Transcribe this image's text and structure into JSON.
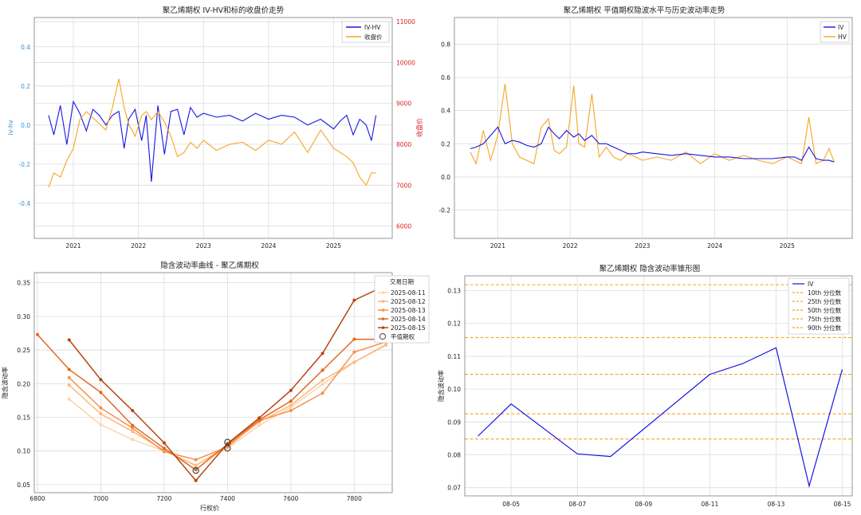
{
  "colors": {
    "iv": "#1515e6",
    "hv": "#f5a623",
    "axis_left": "#3a8fd0",
    "axis_right": "#e02020",
    "pct": "#f5a623"
  },
  "chart_data": [
    {
      "id": "p1",
      "type": "line",
      "title": "聚乙烯期权 IV-HV和标的收盘价走势",
      "ylabel": "iv-hv",
      "y2label": "收盘价",
      "x_ticks": [
        "2021",
        "2022",
        "2023",
        "2024",
        "2025"
      ],
      "ylim": [
        -0.58,
        0.55
      ],
      "y_ticks": [
        -0.4,
        -0.2,
        0.0,
        0.2,
        0.4
      ],
      "y2lim": [
        5700,
        11100
      ],
      "y2_ticks": [
        6000,
        7000,
        8000,
        9000,
        10000,
        11000
      ],
      "xlim": [
        2020.4,
        2025.9
      ],
      "series": [
        {
          "name": "IV-HV",
          "axis": "left",
          "color": "#1515e6",
          "x": [
            2020.62,
            2020.7,
            2020.8,
            2020.9,
            2021.0,
            2021.1,
            2021.2,
            2021.3,
            2021.4,
            2021.5,
            2021.6,
            2021.7,
            2021.78,
            2021.85,
            2021.95,
            2022.05,
            2022.12,
            2022.2,
            2022.3,
            2022.4,
            2022.5,
            2022.6,
            2022.7,
            2022.8,
            2022.9,
            2023.0,
            2023.2,
            2023.4,
            2023.6,
            2023.8,
            2024.0,
            2024.2,
            2024.4,
            2024.6,
            2024.8,
            2025.0,
            2025.1,
            2025.2,
            2025.3,
            2025.4,
            2025.5,
            2025.58,
            2025.65
          ],
          "values": [
            0.05,
            -0.05,
            0.1,
            -0.1,
            0.12,
            0.06,
            -0.03,
            0.08,
            0.05,
            0.0,
            0.05,
            0.07,
            -0.12,
            0.03,
            0.08,
            -0.08,
            0.05,
            -0.29,
            0.1,
            -0.15,
            0.07,
            0.08,
            -0.05,
            0.09,
            0.04,
            0.06,
            0.04,
            0.05,
            0.02,
            0.06,
            0.03,
            0.05,
            0.04,
            0.0,
            0.03,
            -0.02,
            0.02,
            0.05,
            -0.05,
            0.03,
            0.0,
            -0.08,
            0.05
          ]
        },
        {
          "name": "收盘价",
          "axis": "right",
          "color": "#f5a623",
          "x": [
            2020.62,
            2020.7,
            2020.8,
            2020.9,
            2021.0,
            2021.1,
            2021.2,
            2021.3,
            2021.4,
            2021.5,
            2021.6,
            2021.7,
            2021.78,
            2021.85,
            2021.95,
            2022.05,
            2022.12,
            2022.2,
            2022.3,
            2022.4,
            2022.5,
            2022.6,
            2022.7,
            2022.8,
            2022.9,
            2023.0,
            2023.2,
            2023.4,
            2023.6,
            2023.8,
            2024.0,
            2024.2,
            2024.4,
            2024.6,
            2024.8,
            2025.0,
            2025.1,
            2025.2,
            2025.3,
            2025.4,
            2025.5,
            2025.58,
            2025.65
          ],
          "values": [
            6950,
            7300,
            7200,
            7600,
            7900,
            8600,
            8800,
            8650,
            8500,
            8350,
            8900,
            9600,
            8900,
            8500,
            8200,
            8700,
            8800,
            8600,
            8800,
            8550,
            8200,
            7700,
            7800,
            8050,
            7900,
            8100,
            7850,
            8000,
            8050,
            7850,
            8100,
            8000,
            8300,
            7800,
            8350,
            7900,
            7800,
            7700,
            7550,
            7200,
            7000,
            7300,
            7300
          ]
        }
      ]
    },
    {
      "id": "p2",
      "type": "line",
      "title": "聚乙烯期权 平值期权隐波水平与历史波动率走势",
      "x_ticks": [
        "2021",
        "2022",
        "2023",
        "2024",
        "2025"
      ],
      "xlim": [
        2020.4,
        2025.9
      ],
      "ylim": [
        -0.37,
        0.96
      ],
      "y_ticks": [
        -0.2,
        0.0,
        0.2,
        0.4,
        0.6,
        0.8
      ],
      "series": [
        {
          "name": "IV",
          "color": "#1515e6",
          "x": [
            2020.62,
            2020.7,
            2020.8,
            2020.9,
            2021.0,
            2021.1,
            2021.2,
            2021.3,
            2021.4,
            2021.5,
            2021.6,
            2021.7,
            2021.78,
            2021.85,
            2021.95,
            2022.05,
            2022.12,
            2022.2,
            2022.3,
            2022.4,
            2022.5,
            2022.6,
            2022.7,
            2022.8,
            2022.9,
            2023.0,
            2023.2,
            2023.4,
            2023.6,
            2023.8,
            2024.0,
            2024.2,
            2024.4,
            2024.6,
            2024.8,
            2025.0,
            2025.1,
            2025.2,
            2025.3,
            2025.4,
            2025.5,
            2025.58,
            2025.65
          ],
          "values": [
            0.17,
            0.18,
            0.2,
            0.25,
            0.3,
            0.2,
            0.22,
            0.21,
            0.19,
            0.18,
            0.2,
            0.3,
            0.26,
            0.23,
            0.28,
            0.24,
            0.26,
            0.22,
            0.25,
            0.2,
            0.2,
            0.18,
            0.16,
            0.14,
            0.14,
            0.15,
            0.14,
            0.13,
            0.14,
            0.13,
            0.12,
            0.12,
            0.11,
            0.11,
            0.11,
            0.12,
            0.12,
            0.1,
            0.18,
            0.11,
            0.1,
            0.1,
            0.09
          ]
        },
        {
          "name": "HV",
          "color": "#f5a623",
          "x": [
            2020.62,
            2020.7,
            2020.8,
            2020.9,
            2021.0,
            2021.1,
            2021.2,
            2021.3,
            2021.4,
            2021.5,
            2021.6,
            2021.7,
            2021.78,
            2021.85,
            2021.95,
            2022.05,
            2022.12,
            2022.2,
            2022.3,
            2022.4,
            2022.5,
            2022.6,
            2022.7,
            2022.8,
            2022.9,
            2023.0,
            2023.2,
            2023.4,
            2023.6,
            2023.8,
            2024.0,
            2024.2,
            2024.4,
            2024.6,
            2024.8,
            2025.0,
            2025.1,
            2025.2,
            2025.3,
            2025.4,
            2025.5,
            2025.58,
            2025.65
          ],
          "values": [
            0.15,
            0.08,
            0.28,
            0.1,
            0.25,
            0.56,
            0.2,
            0.12,
            0.1,
            0.08,
            0.3,
            0.35,
            0.16,
            0.14,
            0.18,
            0.55,
            0.2,
            0.18,
            0.5,
            0.12,
            0.18,
            0.12,
            0.1,
            0.14,
            0.12,
            0.1,
            0.12,
            0.1,
            0.15,
            0.08,
            0.14,
            0.1,
            0.13,
            0.1,
            0.08,
            0.12,
            0.1,
            0.08,
            0.36,
            0.08,
            0.1,
            0.17,
            0.09
          ]
        }
      ]
    },
    {
      "id": "p3",
      "type": "line",
      "title": "隐含波动率曲线 - 聚乙烯期权",
      "xlabel": "行权价",
      "ylabel": "隐含波动率",
      "xlim": [
        6790,
        7920
      ],
      "ylim": [
        0.038,
        0.365
      ],
      "x_ticks": [
        6800,
        7000,
        7200,
        7400,
        7600,
        7800
      ],
      "y_ticks": [
        0.05,
        0.1,
        0.15,
        0.2,
        0.25,
        0.3,
        0.35
      ],
      "legend_title": "交易日期",
      "atm_label": "平值期权",
      "series": [
        {
          "name": "2025-08-11",
          "color": "#fdd4aa",
          "x": [
            6900,
            7000,
            7100,
            7200,
            7300,
            7400,
            7500,
            7600,
            7700,
            7800,
            7900
          ],
          "values": [
            0.177,
            0.139,
            0.117,
            0.1,
            0.079,
            0.104,
            0.138,
            0.165,
            0.199,
            0.232,
            0.257
          ]
        },
        {
          "name": "2025-08-12",
          "color": "#fdb77b",
          "x": [
            6900,
            7000,
            7100,
            7200,
            7300,
            7400,
            7500,
            7600,
            7700,
            7800,
            7900
          ],
          "values": [
            0.198,
            0.155,
            0.129,
            0.101,
            0.078,
            0.108,
            0.143,
            0.168,
            0.205,
            0.232,
            0.258
          ]
        },
        {
          "name": "2025-08-13",
          "color": "#f7914c",
          "x": [
            6900,
            7000,
            7100,
            7200,
            7300,
            7400,
            7500,
            7600,
            7700,
            7800,
            7900
          ],
          "values": [
            0.209,
            0.164,
            0.134,
            0.099,
            0.087,
            0.106,
            0.145,
            0.16,
            0.186,
            0.247,
            0.262
          ]
        },
        {
          "name": "2025-08-14",
          "color": "#e0691f",
          "x": [
            6800,
            6900,
            7000,
            7100,
            7200,
            7300,
            7400,
            7500,
            7600,
            7700,
            7800,
            7900
          ],
          "values": [
            0.273,
            0.221,
            0.187,
            0.138,
            0.104,
            0.072,
            0.11,
            0.146,
            0.174,
            0.22,
            0.266,
            0.266
          ]
        },
        {
          "name": "2025-08-15",
          "color": "#b7440f",
          "x": [
            6900,
            7000,
            7100,
            7200,
            7300,
            7400,
            7500,
            7600,
            7700,
            7800,
            7900
          ],
          "values": [
            0.265,
            0.206,
            0.16,
            0.112,
            0.056,
            0.111,
            0.149,
            0.19,
            0.245,
            0.324,
            0.346
          ]
        }
      ],
      "atm_points": [
        {
          "x": 7300,
          "y": 0.071
        },
        {
          "x": 7400,
          "y": 0.113
        },
        {
          "x": 7400,
          "y": 0.104
        }
      ]
    },
    {
      "id": "p4",
      "type": "line",
      "title": "聚乙烯期权 隐含波动率锥形图",
      "ylabel": "隐含波动率",
      "xlim": [
        3.6,
        15.3
      ],
      "ylim": [
        0.0675,
        0.1345
      ],
      "x_ticks": [
        {
          "x": 5,
          "label": "08-05"
        },
        {
          "x": 7,
          "label": "08-07"
        },
        {
          "x": 9,
          "label": "08-09"
        },
        {
          "x": 11,
          "label": "08-11"
        },
        {
          "x": 13,
          "label": "08-13"
        },
        {
          "x": 15,
          "label": "08-15"
        }
      ],
      "y_ticks": [
        0.07,
        0.08,
        0.09,
        0.1,
        0.11,
        0.12,
        0.13
      ],
      "series": [
        {
          "name": "IV",
          "color": "#1515e6",
          "x": [
            4,
            5,
            7,
            8,
            11,
            12,
            13,
            14,
            15
          ],
          "values": [
            0.0857,
            0.0955,
            0.0803,
            0.0795,
            0.1045,
            0.1078,
            0.1126,
            0.0705,
            0.106
          ]
        }
      ],
      "percentiles": [
        {
          "name": "10th 分位数",
          "value": 0.0848
        },
        {
          "name": "25th 分位数",
          "value": 0.0925
        },
        {
          "name": "50th 分位数",
          "value": 0.1045
        },
        {
          "name": "75th 分位数",
          "value": 0.1157
        },
        {
          "name": "90th 分位数",
          "value": 0.1318
        }
      ]
    }
  ]
}
